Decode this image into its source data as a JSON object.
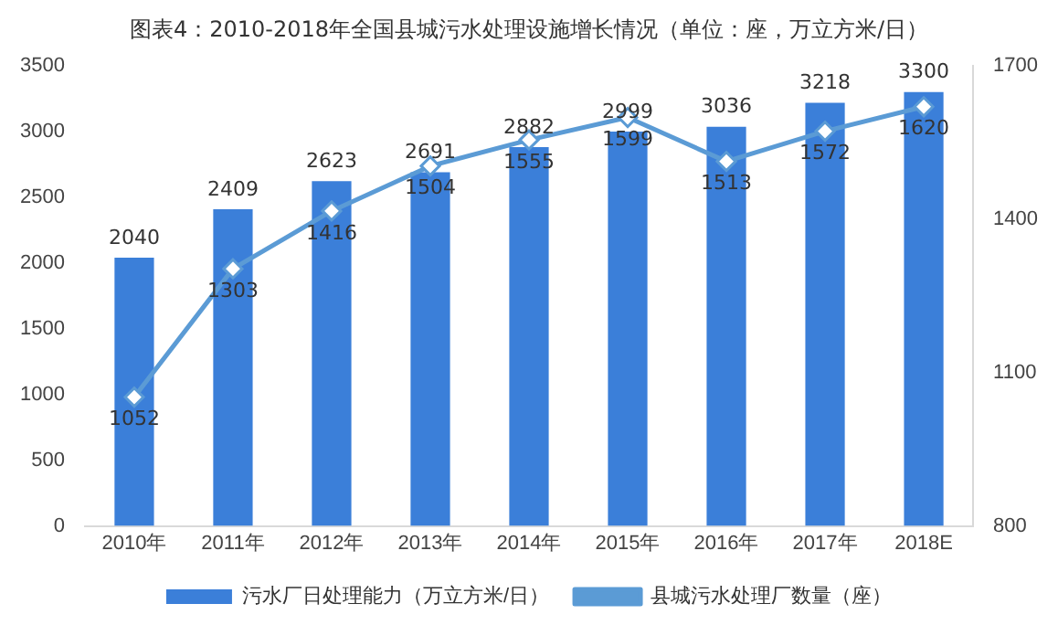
{
  "chart_data": {
    "type": "bar",
    "title": "图表4：2010-2018年全国县城污水处理设施增长情况（单位：座，万立方米/日）",
    "categories": [
      "2010年",
      "2011年",
      "2012年",
      "2013年",
      "2014年",
      "2015年",
      "2016年",
      "2017年",
      "2018E"
    ],
    "series": [
      {
        "name": "污水厂日处理能力（万立方米/日）",
        "color": "#3b7fd9",
        "values": [
          2040,
          2409,
          2623,
          2691,
          2882,
          2999,
          3036,
          3218,
          3300
        ]
      },
      {
        "name": "县城污水处理厂数量（座）",
        "type": "line",
        "axis": "y2",
        "color": "#5b9bd5",
        "marker": "diamond",
        "values": [
          1052,
          1303,
          1416,
          1504,
          1555,
          1599,
          1513,
          1572,
          1620
        ]
      }
    ],
    "ylim": [
      0,
      3500
    ],
    "yticks": [
      0,
      500,
      1000,
      1500,
      2000,
      2500,
      3000,
      3500
    ],
    "y2lim": [
      800,
      1700
    ],
    "y2ticks": [
      800,
      1100,
      1400,
      1700
    ],
    "grid": false,
    "legend": "bottom",
    "data_labels": true
  }
}
